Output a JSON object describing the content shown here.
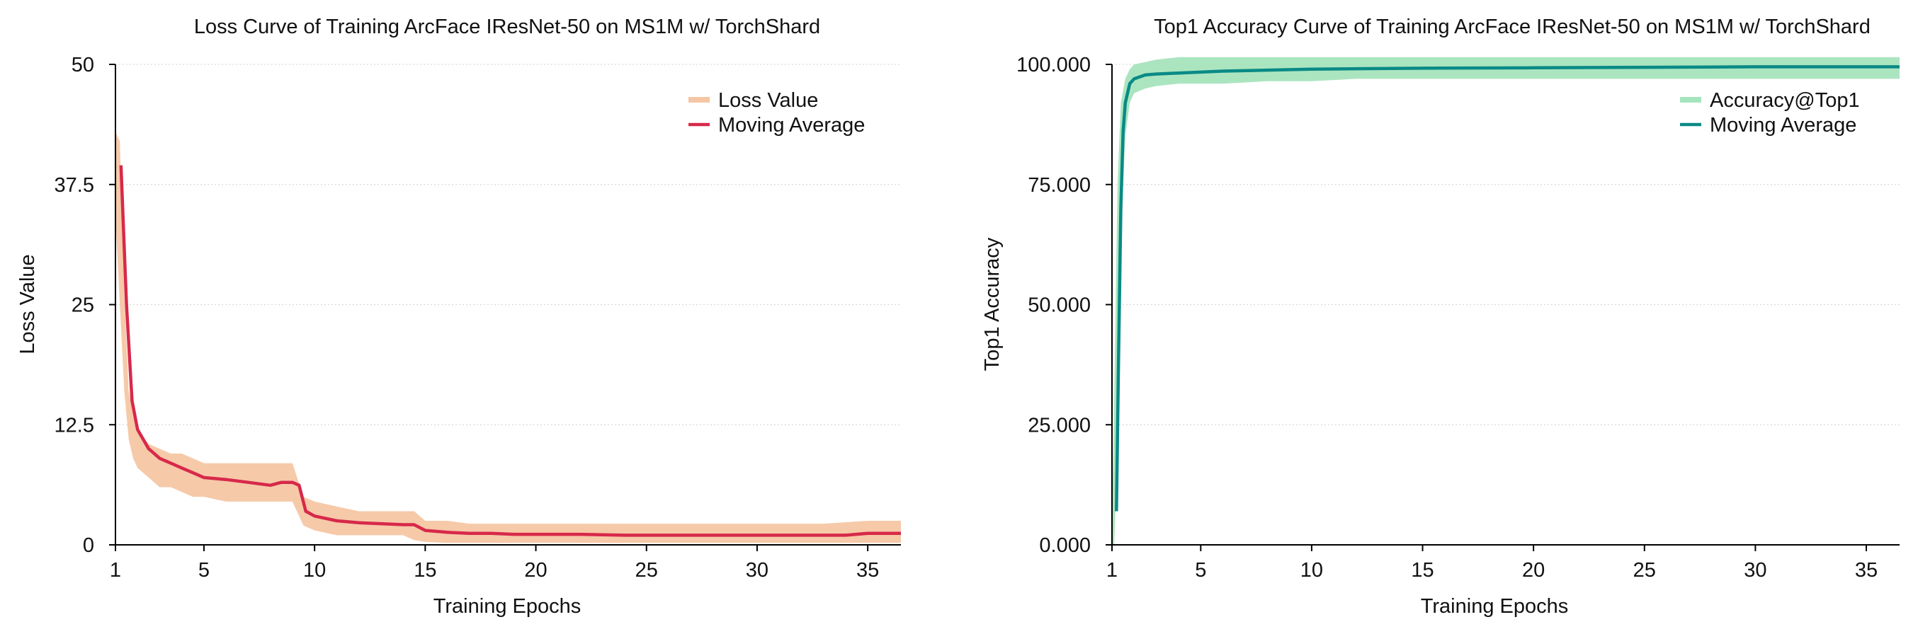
{
  "chart_data": [
    {
      "type": "line",
      "title": "Loss Curve of Training ArcFace IResNet-50 on MS1M w/ TorchShard",
      "xlabel": "Training Epochs",
      "ylabel": "Loss Value",
      "xlim": [
        1,
        36.5
      ],
      "ylim": [
        0,
        50
      ],
      "xticks": [
        1,
        5,
        10,
        15,
        20,
        25,
        30,
        35
      ],
      "xtick_labels": [
        "1",
        "5",
        "10",
        "15",
        "20",
        "25",
        "30",
        "35"
      ],
      "yticks": [
        0,
        12.5,
        25,
        37.5,
        50
      ],
      "ytick_labels": [
        "0",
        "12.5",
        "25",
        "37.5",
        "50"
      ],
      "grid": "horizontal",
      "legend_position": "top-right",
      "series": [
        {
          "name": "Loss Value",
          "style": "band",
          "color": "#f5c6a3",
          "x": [
            1,
            1.2,
            1.4,
            1.6,
            1.8,
            2,
            2.5,
            3,
            3.5,
            4,
            4.5,
            5,
            6,
            7,
            8,
            8.5,
            9,
            9.5,
            10,
            11,
            12,
            13,
            14,
            14.5,
            15,
            16,
            17,
            18,
            20,
            22,
            25,
            28,
            30,
            33,
            35,
            36.5
          ],
          "lower": [
            34,
            25,
            16,
            11,
            9,
            8,
            7,
            6,
            6,
            5.5,
            5,
            5,
            4.5,
            4.5,
            4.5,
            4.5,
            4.5,
            2,
            1.5,
            1,
            1,
            1,
            1,
            0.5,
            0.3,
            0.2,
            0.2,
            0.2,
            0.2,
            0.2,
            0.2,
            0.2,
            0.2,
            0.2,
            0.2,
            0.2
          ],
          "upper": [
            43,
            42,
            26,
            16,
            13.5,
            12,
            10.5,
            10,
            9.5,
            9.5,
            9,
            8.5,
            8.5,
            8.5,
            8.5,
            8.5,
            8.5,
            5,
            4.5,
            4,
            3.5,
            3.5,
            3.5,
            3.5,
            2.5,
            2.5,
            2.2,
            2.2,
            2.2,
            2.2,
            2.2,
            2.2,
            2.2,
            2.2,
            2.5,
            2.5
          ]
        },
        {
          "name": "Moving Average",
          "style": "line",
          "color": "#d7294a",
          "x": [
            1.25,
            1.5,
            1.75,
            2,
            2.5,
            3,
            3.5,
            4,
            4.5,
            5,
            6,
            7,
            8,
            8.5,
            9,
            9.3,
            9.6,
            10,
            11,
            12,
            13,
            14,
            14.5,
            15,
            16,
            17,
            18,
            19,
            20,
            22,
            24,
            26,
            28,
            30,
            32,
            34,
            35,
            36.5
          ],
          "values": [
            39.5,
            25,
            15,
            12,
            10,
            9,
            8.5,
            8,
            7.5,
            7,
            6.8,
            6.5,
            6.2,
            6.5,
            6.5,
            6.2,
            3.5,
            3,
            2.5,
            2.3,
            2.2,
            2.1,
            2.1,
            1.5,
            1.3,
            1.2,
            1.2,
            1.1,
            1.1,
            1.1,
            1.0,
            1.0,
            1.0,
            1.0,
            1.0,
            1.0,
            1.2,
            1.2
          ]
        }
      ]
    },
    {
      "type": "line",
      "title": "Top1 Accuracy Curve of Training ArcFace IResNet-50 on MS1M w/ TorchShard",
      "xlabel": "Training Epochs",
      "ylabel": "Top1 Accuracy",
      "xlim": [
        1,
        36.5
      ],
      "ylim": [
        0,
        100
      ],
      "xticks": [
        1,
        5,
        10,
        15,
        20,
        25,
        30,
        35
      ],
      "xtick_labels": [
        "1",
        "5",
        "10",
        "15",
        "20",
        "25",
        "30",
        "35"
      ],
      "yticks": [
        0,
        25,
        50,
        75,
        100
      ],
      "ytick_labels": [
        "0.000",
        "25.000",
        "50.000",
        "75.000",
        "100.000"
      ],
      "grid": "horizontal",
      "legend_position": "top-right",
      "series": [
        {
          "name": "Accuracy@Top1",
          "style": "band",
          "color": "#a6e4bd",
          "x": [
            1,
            1.1,
            1.25,
            1.4,
            1.6,
            1.8,
            2,
            2.5,
            3,
            4,
            5,
            6,
            8,
            10,
            12,
            15,
            20,
            25,
            30,
            35,
            36.5
          ],
          "lower": [
            0,
            0,
            20,
            65,
            85,
            92,
            94,
            95,
            95.5,
            96,
            96,
            96,
            96.5,
            96.5,
            97,
            97,
            97,
            97,
            97,
            97,
            97
          ],
          "upper": [
            5,
            30,
            75,
            92,
            97,
            99,
            100,
            100.5,
            101,
            101.5,
            101.5,
            101.5,
            101.5,
            101.5,
            101.5,
            101.5,
            101.5,
            101.5,
            101.5,
            101.5,
            101.5
          ]
        },
        {
          "name": "Moving Average",
          "style": "line",
          "color": "#0a8a86",
          "x": [
            1.2,
            1.3,
            1.4,
            1.5,
            1.6,
            1.8,
            2,
            2.5,
            3,
            4,
            5,
            6,
            8,
            10,
            12,
            15,
            20,
            25,
            30,
            35,
            36.5
          ],
          "values": [
            7,
            40,
            70,
            86,
            92,
            96,
            97,
            97.8,
            98,
            98.2,
            98.4,
            98.6,
            98.8,
            99,
            99.1,
            99.2,
            99.3,
            99.4,
            99.5,
            99.5,
            99.5
          ]
        }
      ]
    }
  ]
}
